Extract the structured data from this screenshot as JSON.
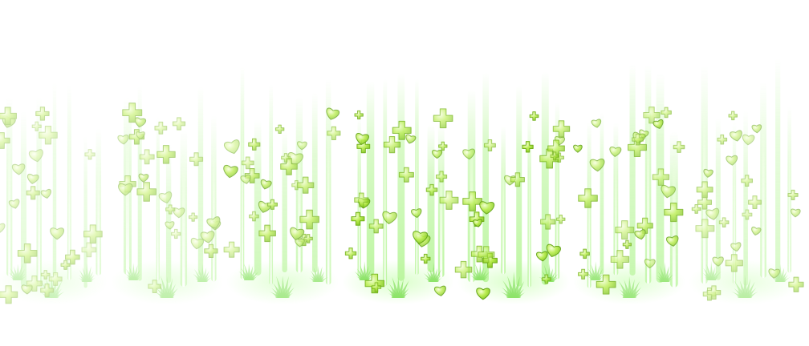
{
  "sprite_sheet": {
    "effect": "healing-aura",
    "frame_count": 7,
    "frames": [
      {
        "index": 1,
        "opacity": 0.45
      },
      {
        "index": 2,
        "opacity": 0.55
      },
      {
        "index": 3,
        "opacity": 0.75
      },
      {
        "index": 4,
        "opacity": 1.0
      },
      {
        "index": 5,
        "opacity": 1.0
      },
      {
        "index": 6,
        "opacity": 0.85
      },
      {
        "index": 7,
        "opacity": 0.6
      }
    ],
    "colors": {
      "beam": "#b8f59a",
      "beam_core": "#e9ffd9",
      "glow": "#d6ffc4",
      "cross_fill": "#a6e33a",
      "cross_edge": "#6fae16",
      "heart_fill": "#9fe23c",
      "heart_edge": "#5e9f12",
      "grass": "#8ee36a"
    },
    "icons": [
      "plus-cross-icon",
      "heart-icon",
      "grass-burst-icon"
    ]
  }
}
